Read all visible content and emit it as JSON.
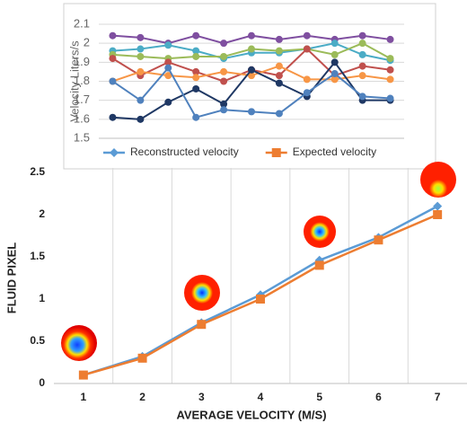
{
  "chart_data": [
    {
      "type": "line",
      "y_label": "Velocity Liters/s",
      "ylim": [
        1.5,
        2.1
      ],
      "yticks": [
        1.5,
        1.6,
        1.7,
        1.8,
        1.9,
        2,
        2.1
      ],
      "grid": true,
      "x": [
        1,
        2,
        3,
        4,
        5,
        6,
        7,
        8,
        9,
        10,
        11
      ],
      "series": [
        {
          "color": "#7f4fa0",
          "values": [
            2.04,
            2.03,
            2.0,
            2.04,
            2.0,
            2.04,
            2.02,
            2.04,
            2.02,
            2.04,
            2.02
          ]
        },
        {
          "color": "#4bacc6",
          "values": [
            1.96,
            1.97,
            1.99,
            1.96,
            1.92,
            1.95,
            1.95,
            1.97,
            2.0,
            1.94,
            1.91
          ]
        },
        {
          "color": "#9bbb59",
          "values": [
            1.94,
            1.93,
            1.92,
            1.93,
            1.93,
            1.97,
            1.96,
            1.97,
            1.94,
            2.0,
            1.92
          ]
        },
        {
          "color": "#c0504d",
          "values": [
            1.92,
            1.83,
            1.9,
            1.85,
            1.8,
            1.86,
            1.83,
            1.97,
            1.83,
            1.88,
            1.86
          ]
        },
        {
          "color": "#f79646",
          "values": [
            1.8,
            1.85,
            1.83,
            1.82,
            1.85,
            1.83,
            1.88,
            1.81,
            1.81,
            1.83,
            1.81
          ]
        },
        {
          "color": "#1f3864",
          "values": [
            1.61,
            1.6,
            1.69,
            1.76,
            1.68,
            1.86,
            1.79,
            1.72,
            1.9,
            1.7,
            1.7
          ]
        },
        {
          "color": "#4f81bd",
          "values": [
            1.8,
            1.7,
            1.87,
            1.61,
            1.65,
            1.64,
            1.63,
            1.74,
            1.84,
            1.72,
            1.71
          ]
        }
      ]
    },
    {
      "type": "line",
      "y_label": "FLUID PIXEL",
      "x_label": "AVERAGE VELOCITY (M/S)",
      "ylim": [
        0,
        2.5
      ],
      "yticks": [
        0,
        0.5,
        1,
        1.5,
        2,
        2.5
      ],
      "grid": false,
      "legend": "top",
      "categories": [
        "1",
        "2",
        "3",
        "4",
        "5",
        "6",
        "7"
      ],
      "series": [
        {
          "name": "Reconstructed velocity",
          "color": "#5b9bd5",
          "marker": "diamond",
          "values": [
            0.1,
            0.32,
            0.72,
            1.05,
            1.46,
            1.73,
            2.1
          ]
        },
        {
          "name": "Expected velocity",
          "color": "#ed7d31",
          "marker": "square",
          "values": [
            0.1,
            0.3,
            0.7,
            1.0,
            1.4,
            1.7,
            2.0
          ]
        }
      ]
    }
  ]
}
